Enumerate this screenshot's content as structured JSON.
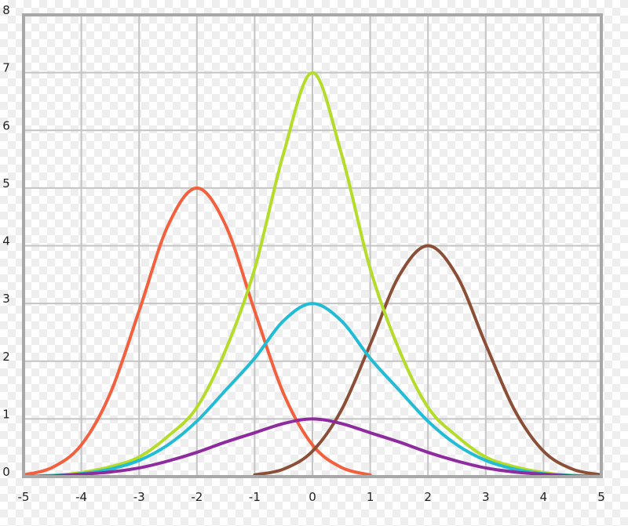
{
  "chart_data": {
    "type": "line",
    "title": "",
    "xlabel": "",
    "ylabel": "",
    "xlim": [
      -5,
      5
    ],
    "ylim": [
      0,
      8
    ],
    "grid": true,
    "x_ticks": [
      "-5",
      "-4",
      "-3",
      "-2",
      "-1",
      "0",
      "1",
      "2",
      "3",
      "4",
      "5"
    ],
    "y_ticks": [
      "0",
      "1",
      "2",
      "3",
      "4",
      "5",
      "6",
      "7",
      "8"
    ],
    "series": [
      {
        "color": "#f2603e",
        "x": [
          -5,
          -4.5,
          -4,
          -3.5,
          -3,
          -2.5,
          -2,
          -1.5,
          -1,
          -0.5,
          0,
          0.5,
          1
        ],
        "y": [
          0.03,
          0.16,
          0.55,
          1.44,
          2.87,
          4.35,
          5,
          4.35,
          2.87,
          1.44,
          0.55,
          0.16,
          0.03
        ]
      },
      {
        "color": "#8a4f36",
        "x": [
          -1,
          -0.5,
          0,
          0.5,
          1,
          1.5,
          2,
          2.5,
          3,
          3.5,
          4,
          4.5,
          5
        ],
        "y": [
          0.03,
          0.13,
          0.44,
          1.15,
          2.29,
          3.48,
          4,
          3.48,
          2.29,
          1.15,
          0.44,
          0.13,
          0.03
        ]
      },
      {
        "color": "#b5dc2a",
        "x": [
          -5,
          -4.5,
          -4,
          -3.5,
          -3,
          -2.5,
          -2,
          -1.5,
          -1,
          -0.5,
          0,
          0.5,
          1,
          1.5,
          2,
          2.5,
          3,
          3.5,
          4,
          4.5,
          5
        ],
        "y": [
          0,
          0.02,
          0.07,
          0.17,
          0.34,
          0.7,
          1.2,
          2.2,
          3.6,
          5.6,
          7,
          5.6,
          3.6,
          2.2,
          1.2,
          0.7,
          0.34,
          0.17,
          0.07,
          0.02,
          0
        ]
      },
      {
        "color": "#22bcd4",
        "x": [
          -5,
          -4.5,
          -4,
          -3.5,
          -3,
          -2.5,
          -2,
          -1.5,
          -1,
          -0.5,
          0,
          0.5,
          1,
          1.5,
          2,
          2.5,
          3,
          3.5,
          4,
          4.5,
          5
        ],
        "y": [
          0,
          0.02,
          0.05,
          0.13,
          0.28,
          0.55,
          0.96,
          1.5,
          2.05,
          2.7,
          3,
          2.7,
          2.05,
          1.5,
          0.96,
          0.55,
          0.28,
          0.13,
          0.05,
          0.02,
          0
        ]
      },
      {
        "color": "#8e2b9e",
        "x": [
          -5,
          -4.5,
          -4,
          -3.5,
          -3,
          -2.5,
          -2,
          -1.5,
          -1,
          -0.5,
          0,
          0.5,
          1,
          1.5,
          2,
          2.5,
          3,
          3.5,
          4,
          4.5,
          5
        ],
        "y": [
          0,
          0.01,
          0.04,
          0.08,
          0.15,
          0.27,
          0.42,
          0.6,
          0.76,
          0.92,
          1,
          0.92,
          0.76,
          0.6,
          0.42,
          0.27,
          0.15,
          0.08,
          0.04,
          0.01,
          0
        ]
      }
    ]
  }
}
